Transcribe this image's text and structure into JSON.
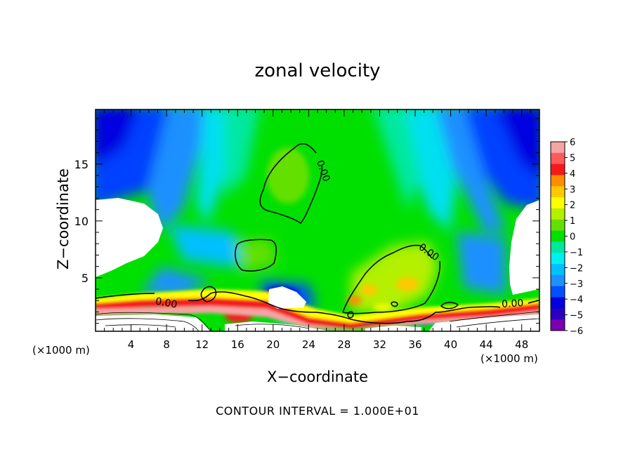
{
  "chart_data": {
    "type": "heatmap",
    "title": "zonal velocity",
    "xlabel": "X−coordinate",
    "ylabel": "Z−coordinate",
    "x_unit_left": "(×1000 m)",
    "x_unit_right": "(×1000 m)",
    "footer": "CONTOUR INTERVAL = 1.000E+01",
    "xlim": [
      0,
      50
    ],
    "ylim": [
      0.3,
      19.8
    ],
    "x_ticks": [
      "4",
      "8",
      "12",
      "16",
      "20",
      "24",
      "28",
      "32",
      "36",
      "40",
      "44",
      "48"
    ],
    "x_tick_values": [
      4,
      8,
      12,
      16,
      20,
      24,
      28,
      32,
      36,
      40,
      44,
      48
    ],
    "y_ticks": [
      "5",
      "10",
      "15"
    ],
    "y_tick_values": [
      5,
      10,
      15
    ],
    "colorbar": {
      "min": -6,
      "max": 6,
      "labels": [
        "6",
        "5",
        "4",
        "3",
        "2",
        "1",
        "0",
        "−1",
        "−2",
        "−3",
        "−4",
        "−5",
        "−6"
      ],
      "colors": [
        "#f5a3a3",
        "#ff5a5a",
        "#f51a1a",
        "#ff8c00",
        "#ffc800",
        "#ffff00",
        "#b4f000",
        "#64e000",
        "#00e000",
        "#00e8a0",
        "#00f0f0",
        "#00c0ff",
        "#1e90ff",
        "#0050ff",
        "#0000e0",
        "#2a00c0",
        "#7a00b0"
      ]
    },
    "contour_labels": [
      "0.00",
      "0.00",
      "0.00",
      "0.00",
      "0.00"
    ]
  }
}
